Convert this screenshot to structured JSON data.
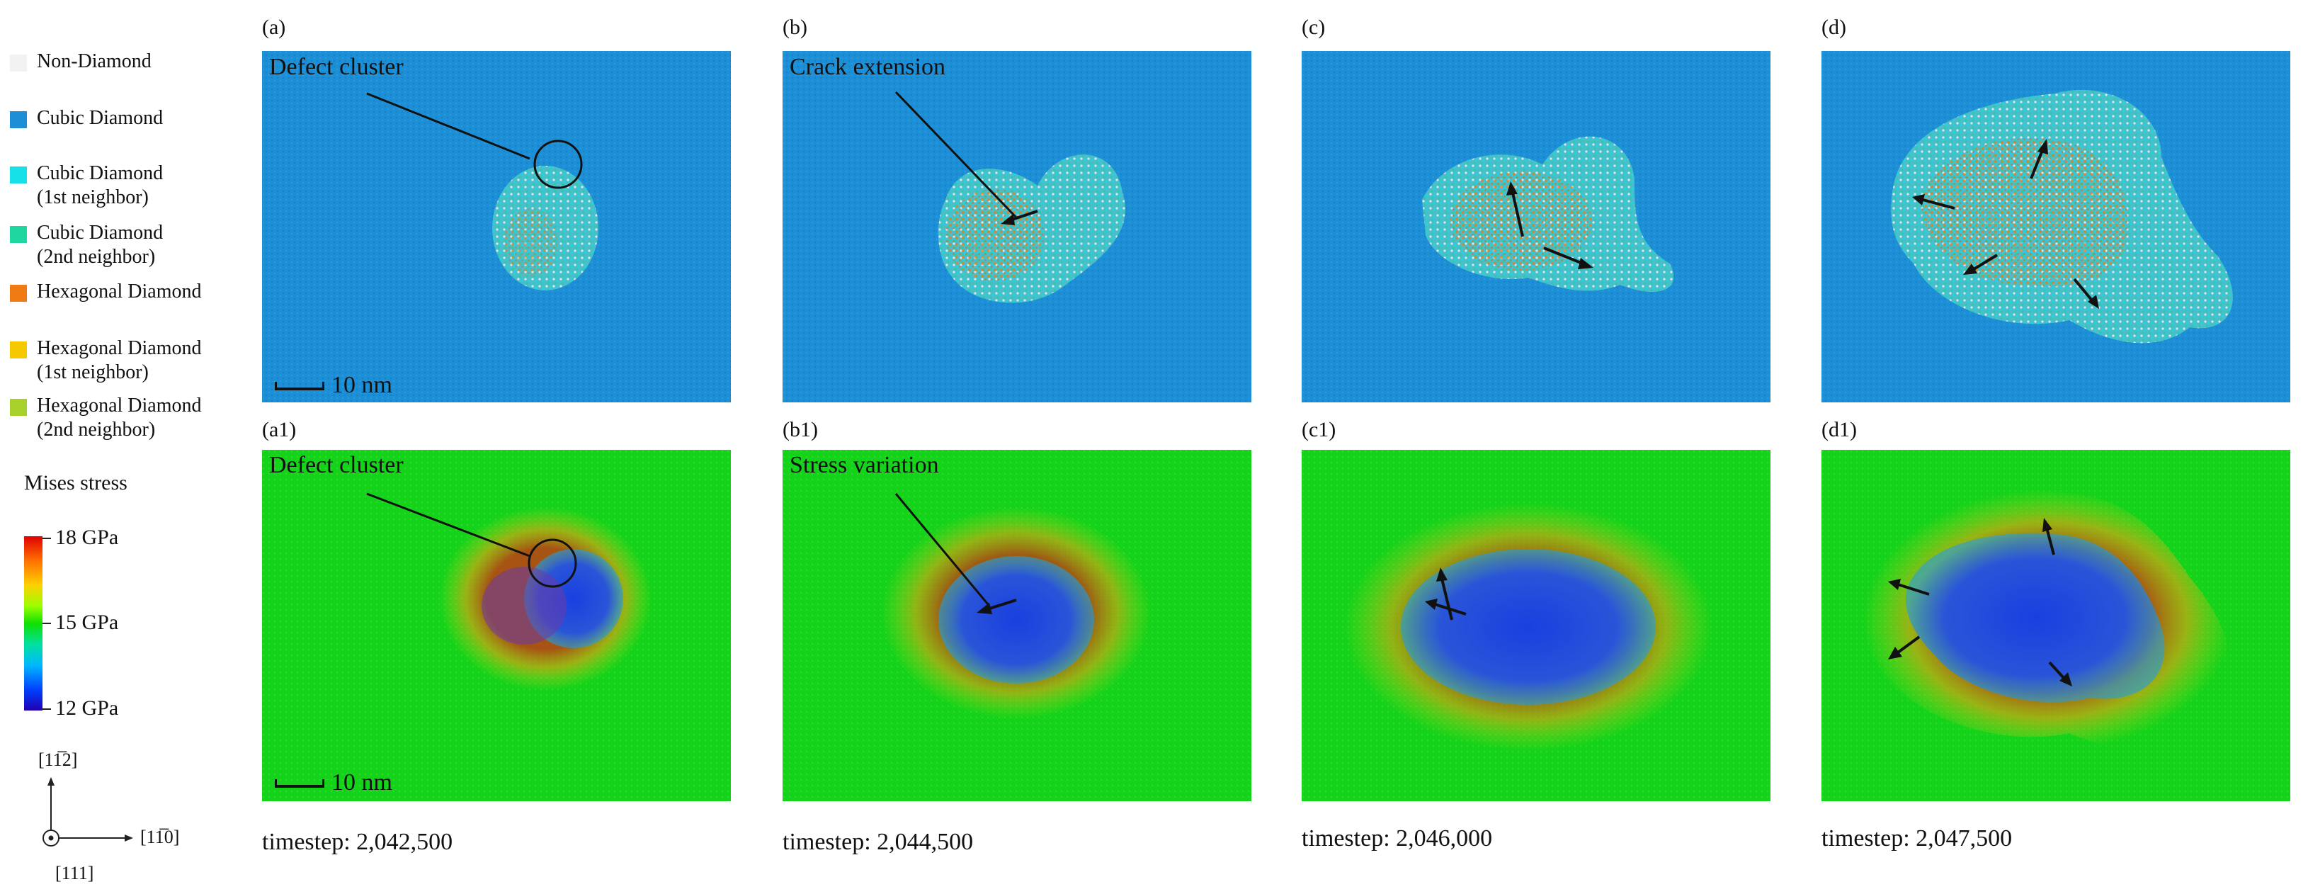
{
  "legend": {
    "items": [
      {
        "lines": [
          "Non-Diamond"
        ],
        "color": "#f2f2f2"
      },
      {
        "lines": [
          "Cubic Diamond"
        ],
        "color": "#1d8fd6"
      },
      {
        "lines": [
          "Cubic Diamond",
          "(1st neighbor)"
        ],
        "color": "#16e0e8"
      },
      {
        "lines": [
          "Cubic Diamond",
          "(2nd neighbor)"
        ],
        "color": "#1fd6a0"
      },
      {
        "lines": [
          "Hexagonal Diamond"
        ],
        "color": "#f07a14"
      },
      {
        "lines": [
          "Hexagonal Diamond",
          "(1st neighbor)"
        ],
        "color": "#f5c800"
      },
      {
        "lines": [
          "Hexagonal Diamond",
          "(2nd neighbor)"
        ],
        "color": "#a8d02a"
      }
    ],
    "colorbar": {
      "title": "Mises stress",
      "max_label": "18 GPa",
      "mid_label": "15 GPa",
      "min_label": "12 GPa"
    },
    "axes": {
      "up": "[11̅2]",
      "right": "[11̅0]",
      "out": "[111]"
    }
  },
  "panels_top": [
    {
      "label": "(a)",
      "annotation": "Defect cluster",
      "scalebar": "10 nm"
    },
    {
      "label": "(b)",
      "annotation": "Crack extension"
    },
    {
      "label": "(c)"
    },
    {
      "label": "(d)"
    }
  ],
  "panels_bottom": [
    {
      "label": "(a1)",
      "annotation": "Defect cluster",
      "scalebar": "10 nm",
      "timestep": "timestep: 2,042,500"
    },
    {
      "label": "(b1)",
      "annotation": "Stress variation",
      "timestep": "timestep: 2,044,500"
    },
    {
      "label": "(c1)",
      "timestep": "timestep: 2,046,000"
    },
    {
      "label": "(d1)",
      "timestep": "timestep: 2,047,500"
    }
  ],
  "colors": {
    "cubic_bg": "#1d8fd6",
    "stress_bg": "#15d21a",
    "hexagonal": "#f07a14",
    "neighbor1": "#16e0e8",
    "neighbor2": "#1fd6a0",
    "low_stress": "#2030d8",
    "high_stress": "#e02010"
  }
}
